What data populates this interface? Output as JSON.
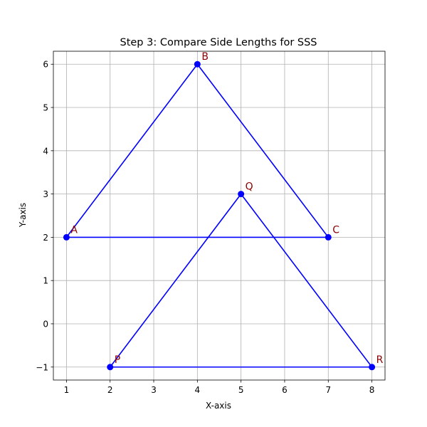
{
  "chart_data": {
    "type": "line",
    "title": "Step 3: Compare Side Lengths for SSS",
    "xlabel": "X-axis",
    "ylabel": "Y-axis",
    "xlim": [
      0.7,
      8.3
    ],
    "ylim": [
      -1.3,
      6.3
    ],
    "xticks": [
      "1",
      "2",
      "3",
      "4",
      "5",
      "6",
      "7",
      "8"
    ],
    "xtick_values": [
      1,
      2,
      3,
      4,
      5,
      6,
      7,
      8
    ],
    "yticks": [
      "−1",
      "0",
      "1",
      "2",
      "3",
      "4",
      "5",
      "6"
    ],
    "ytick_values": [
      -1,
      0,
      1,
      2,
      3,
      4,
      5,
      6
    ],
    "grid": true,
    "line_color": "#0000ff",
    "label_color": "#8b0000",
    "series": [
      {
        "points": [
          {
            "label": "A",
            "x": 1,
            "y": 2
          },
          {
            "label": "B",
            "x": 4,
            "y": 6
          },
          {
            "label": "C",
            "x": 7,
            "y": 2
          }
        ]
      },
      {
        "points": [
          {
            "label": "P",
            "x": 2,
            "y": -1
          },
          {
            "label": "Q",
            "x": 5,
            "y": 3
          },
          {
            "label": "R",
            "x": 8,
            "y": -1
          }
        ]
      }
    ]
  }
}
